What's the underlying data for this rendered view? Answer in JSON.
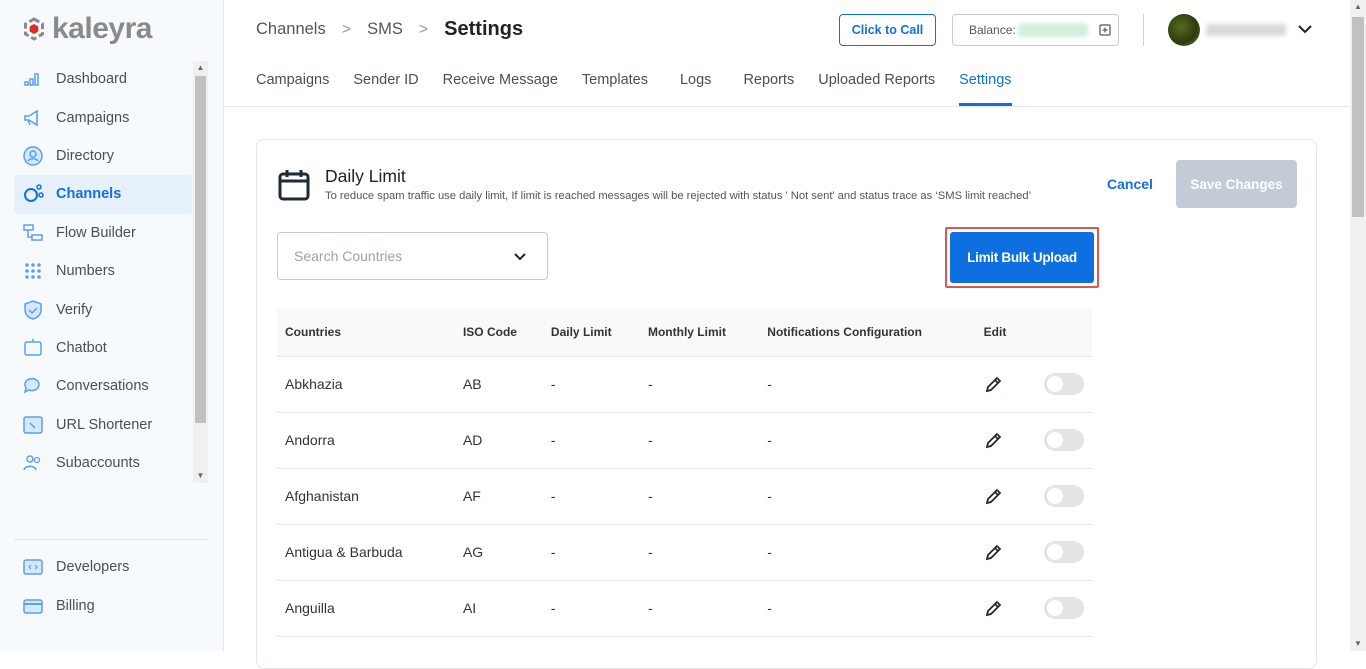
{
  "brand": {
    "name": "kaleyra",
    "logo_color": "#e02828"
  },
  "sidebar": {
    "items": [
      {
        "label": "Dashboard",
        "icon": "bar-chart-icon"
      },
      {
        "label": "Campaigns",
        "icon": "megaphone-icon"
      },
      {
        "label": "Directory",
        "icon": "contact-icon"
      },
      {
        "label": "Channels",
        "icon": "channels-icon",
        "active": true
      },
      {
        "label": "Flow Builder",
        "icon": "flow-icon"
      },
      {
        "label": "Numbers",
        "icon": "dialpad-icon"
      },
      {
        "label": "Verify",
        "icon": "shield-icon"
      },
      {
        "label": "Chatbot",
        "icon": "chatbot-icon"
      },
      {
        "label": "Conversations",
        "icon": "chat-icon"
      },
      {
        "label": "URL Shortener",
        "icon": "link-icon"
      },
      {
        "label": "Subaccounts",
        "icon": "users-icon"
      }
    ],
    "bottom": [
      {
        "label": "Developers",
        "icon": "code-icon"
      },
      {
        "label": "Billing",
        "icon": "card-icon"
      }
    ]
  },
  "header": {
    "breadcrumb": [
      "Channels",
      "SMS",
      "Settings"
    ],
    "click_to_call": "Click to Call",
    "balance_label": "Balance:"
  },
  "tabs": [
    {
      "label": "Campaigns"
    },
    {
      "label": "Sender ID"
    },
    {
      "label": "Receive Message"
    },
    {
      "label": "Templates"
    },
    {
      "label": "Logs"
    },
    {
      "label": "Reports"
    },
    {
      "label": "Uploaded Reports"
    },
    {
      "label": "Settings",
      "active": true
    }
  ],
  "card": {
    "title": "Daily Limit",
    "description": "To reduce spam traffic use daily limit, If limit is reached messages will be rejected with status ' Not sent' and status trace as ‘SMS limit reached’",
    "cancel": "Cancel",
    "save": "Save Changes",
    "search_placeholder": "Search Countries",
    "bulk_upload": "Limit Bulk Upload"
  },
  "table": {
    "columns": [
      "Countries",
      "ISO Code",
      "Daily Limit",
      "Monthly Limit",
      "Notifications Configuration",
      "Edit"
    ],
    "rows": [
      {
        "country": "Abkhazia",
        "iso": "AB",
        "daily": "-",
        "monthly": "-",
        "notif": "-",
        "enabled": false
      },
      {
        "country": "Andorra",
        "iso": "AD",
        "daily": "-",
        "monthly": "-",
        "notif": "-",
        "enabled": false
      },
      {
        "country": "Afghanistan",
        "iso": "AF",
        "daily": "-",
        "monthly": "-",
        "notif": "-",
        "enabled": false
      },
      {
        "country": "Antigua & Barbuda",
        "iso": "AG",
        "daily": "-",
        "monthly": "-",
        "notif": "-",
        "enabled": false
      },
      {
        "country": "Anguilla",
        "iso": "AI",
        "daily": "-",
        "monthly": "-",
        "notif": "-",
        "enabled": false
      }
    ]
  },
  "colors": {
    "accent": "#1270d8",
    "highlight_border": "#e05454",
    "disabled": "#c3ccd6"
  }
}
